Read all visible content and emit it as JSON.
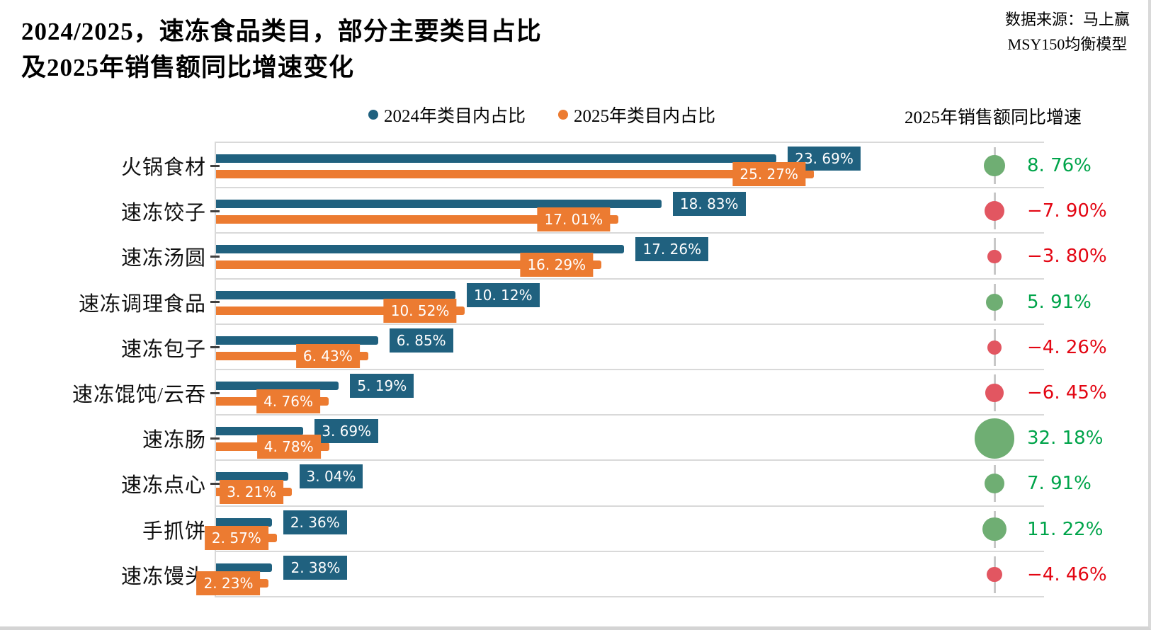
{
  "header": {
    "title_line1": "2024/2025，速冻食品类目，部分主要类目占比",
    "title_line2": "及2025年销售额同比增速变化",
    "source_line1": "数据来源：马上赢",
    "source_line2": "MSY150均衡模型"
  },
  "growth_column": {
    "header": "2025年销售额同比增速"
  },
  "colors": {
    "bar_2024": "#20617f",
    "bar_2025": "#ec7b31",
    "growth_positive_bubble": "#6fae73",
    "growth_negative_bubble": "#e25661",
    "growth_positive_text": "#00a44a",
    "growth_negative_text": "#e30613",
    "grid": "#d9d9d9"
  },
  "chart_data": {
    "type": "bar",
    "orientation": "horizontal",
    "title": "2024/2025，速冻食品类目，部分主要类目占比 及2025年销售额同比增速变化",
    "xlim": [
      0,
      35
    ],
    "grid": "horizontal row separators only, no x-axis tick labels",
    "legend_position": "top-center",
    "categories": [
      "火锅食材",
      "速冻饺子",
      "速冻汤圆",
      "速冻调理食品",
      "速冻包子",
      "速冻馄饨/云吞",
      "速冻肠",
      "速冻点心",
      "手抓饼",
      "速冻馒头"
    ],
    "series": [
      {
        "name": "2024年类目内占比",
        "values": [
          23.69,
          18.83,
          17.26,
          10.12,
          6.85,
          5.19,
          3.69,
          3.04,
          2.36,
          2.38
        ],
        "labels": [
          "23. 69%",
          "18. 83%",
          "17. 26%",
          "10. 12%",
          "6. 85%",
          "5. 19%",
          "3. 69%",
          "3. 04%",
          "2. 36%",
          "2. 38%"
        ]
      },
      {
        "name": "2025年类目内占比",
        "values": [
          25.27,
          17.01,
          16.29,
          10.52,
          6.43,
          4.76,
          4.78,
          3.21,
          2.57,
          2.23
        ],
        "labels": [
          "25. 27%",
          "17. 01%",
          "16. 29%",
          "10. 52%",
          "6. 43%",
          "4. 76%",
          "4. 78%",
          "3. 21%",
          "2. 57%",
          "2. 23%"
        ]
      }
    ],
    "growth_series": {
      "name": "2025年销售额同比增速",
      "values": [
        8.76,
        -7.9,
        -3.8,
        5.91,
        -4.26,
        -6.45,
        32.18,
        7.91,
        11.22,
        -4.46
      ],
      "labels": [
        "8. 76%",
        "−7. 90%",
        "−3. 80%",
        "5. 91%",
        "−4. 26%",
        "−6. 45%",
        "32. 18%",
        "7. 91%",
        "11. 22%",
        "−4. 46%"
      ],
      "bubble_note": "bubble area proportional to absolute growth, green positive, red negative"
    }
  }
}
